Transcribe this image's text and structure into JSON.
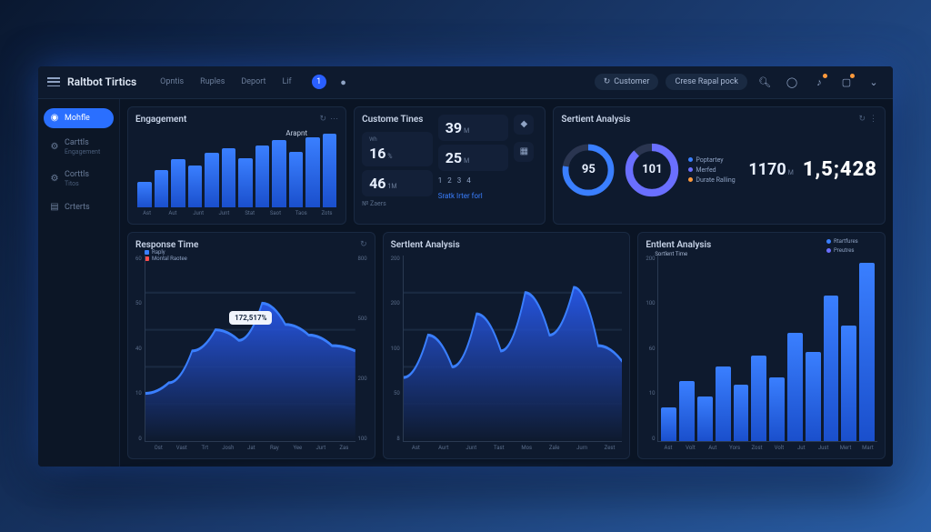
{
  "colors": {
    "bg_page_grad": [
      "#0a1830",
      "#1a3a6e",
      "#2a5fa8"
    ],
    "bg_screen": "#0a1424",
    "bg_card": "#0e1a2e",
    "card_border": "#1a2a42",
    "accent": "#3a7fff",
    "accent_dark": "#1a4fcc",
    "text_primary": "#e8f0ff",
    "text_secondary": "#8fa3c4",
    "text_muted": "#5a6d8a",
    "gauge_track": "#2a3550",
    "gauge_fill1": "#3a7fff",
    "gauge_fill2": "#6a6fff",
    "badge_orange": "#ff9a3c",
    "red": "#ff4d4d"
  },
  "topbar": {
    "brand": "Raltbot Tirtics",
    "tabs": [
      "Opntis",
      "Ruples",
      "Deport",
      "Lif"
    ],
    "badge": "1",
    "pill1": {
      "icon": "↻",
      "label": "Customer"
    },
    "pill2": {
      "label": "Crese Rapal pock"
    },
    "icons": [
      "search",
      "user",
      "bell",
      "note",
      "chevron"
    ]
  },
  "sidebar": {
    "items": [
      {
        "icon": "user",
        "label": "Mohfle",
        "active": true
      },
      {
        "icon": "gear",
        "label": "Carttls",
        "sub": "Engagement"
      },
      {
        "icon": "gear",
        "label": "Corttls",
        "sub": "Titos"
      },
      {
        "icon": "doc",
        "label": "Crterts",
        "sub": ""
      }
    ]
  },
  "engagement": {
    "title": "Engagement",
    "accent_label": "Arapnt",
    "type": "bar",
    "values": [
      32,
      46,
      60,
      52,
      68,
      74,
      62,
      78,
      84,
      70,
      88,
      92
    ],
    "xlabels": [
      "Ast",
      "Aut",
      "Junt",
      "Junt",
      "Stat",
      "Saot",
      "Taos",
      "Zots"
    ],
    "bar_color_top": "#3a7fff",
    "bar_color_bottom": "#1a4fcc",
    "ylim": [
      0,
      100
    ]
  },
  "custom": {
    "title": "Custome Tines",
    "left": [
      {
        "label": "Wh",
        "value": "16",
        "unit": "%"
      },
      {
        "label": "",
        "value": "46",
        "unit": "1M"
      },
      {
        "label": "№ Zaers",
        "value": "",
        "unit": ""
      }
    ],
    "right": [
      {
        "value": "39",
        "unit": "M"
      },
      {
        "value": "25",
        "unit": "M"
      }
    ],
    "numbers": [
      "1",
      "2",
      "3",
      "4"
    ],
    "link": "Sratk Irter forl"
  },
  "sentiment_top": {
    "title": "Sertient Analysis",
    "gauge1": {
      "value": "95",
      "track": "#2a3550",
      "fill": "#3a7fff",
      "pct": 78
    },
    "gauge2": {
      "value": "101",
      "track": "#2a3550",
      "fill": "#6a6fff",
      "pct": 88
    },
    "legend": [
      {
        "color": "#3a7fff",
        "label": "Poptartey"
      },
      {
        "color": "#6a6fff",
        "label": "Merfed"
      },
      {
        "color": "#ff9a3c",
        "label": "Durate Ralling"
      }
    ],
    "stat1": "1170",
    "stat1_unit": "M",
    "bignum": "1,5;428"
  },
  "response": {
    "title": "Response Time",
    "type": "area",
    "legend": [
      {
        "color": "#3a7fff",
        "label": "Raply"
      },
      {
        "color": "#ff4d4d",
        "label": "Montal Raotee"
      }
    ],
    "tooltip": "172,517%",
    "yticks": [
      "60",
      "50",
      "40",
      "10",
      "0"
    ],
    "yticks_r": [
      "800",
      "500",
      "200",
      "100"
    ],
    "xlabels": [
      "Ost",
      "Vast",
      "Trt",
      "Josh",
      "Jat",
      "Ray",
      "Yee",
      "Jurt",
      "Zas"
    ],
    "points": [
      18,
      22,
      34,
      42,
      38,
      52,
      44,
      40,
      36,
      34
    ],
    "line_color": "#3a7fff",
    "fill_top": "#2a5fff",
    "fill_bottom": "#0e1a2e"
  },
  "sentiment_mid": {
    "title": "Sertlent Analysis",
    "type": "area",
    "yticks": [
      "200",
      "200",
      "100",
      "50",
      "8"
    ],
    "xlabels": [
      "Ast",
      "Aurt",
      "Junt",
      "Tast",
      "Mos",
      "Zale",
      "Jurn",
      "Zest"
    ],
    "points": [
      24,
      40,
      28,
      48,
      34,
      56,
      40,
      58,
      36,
      30
    ],
    "line_color": "#3a7fff",
    "fill_top": "#2a5fff",
    "fill_bottom": "#0e1a2e"
  },
  "sentiment_right": {
    "title": "Entlent Analysis",
    "subtitle": "Sortlent Time",
    "type": "bar",
    "legend": [
      {
        "color": "#3a7fff",
        "label": "Rtartfures"
      },
      {
        "color": "#6a6fff",
        "label": "Preutres"
      }
    ],
    "yticks": [
      "200",
      "100",
      "60",
      "10",
      "0"
    ],
    "xlabels": [
      "Ast",
      "Volt",
      "Aut",
      "Yors",
      "Zost",
      "Volt",
      "Jut",
      "Just",
      "Mert",
      "Mart"
    ],
    "values": [
      18,
      32,
      24,
      40,
      30,
      46,
      34,
      58,
      48,
      78,
      62,
      96
    ],
    "bar_color_top": "#3a7fff",
    "bar_color_bottom": "#1a4fcc"
  }
}
